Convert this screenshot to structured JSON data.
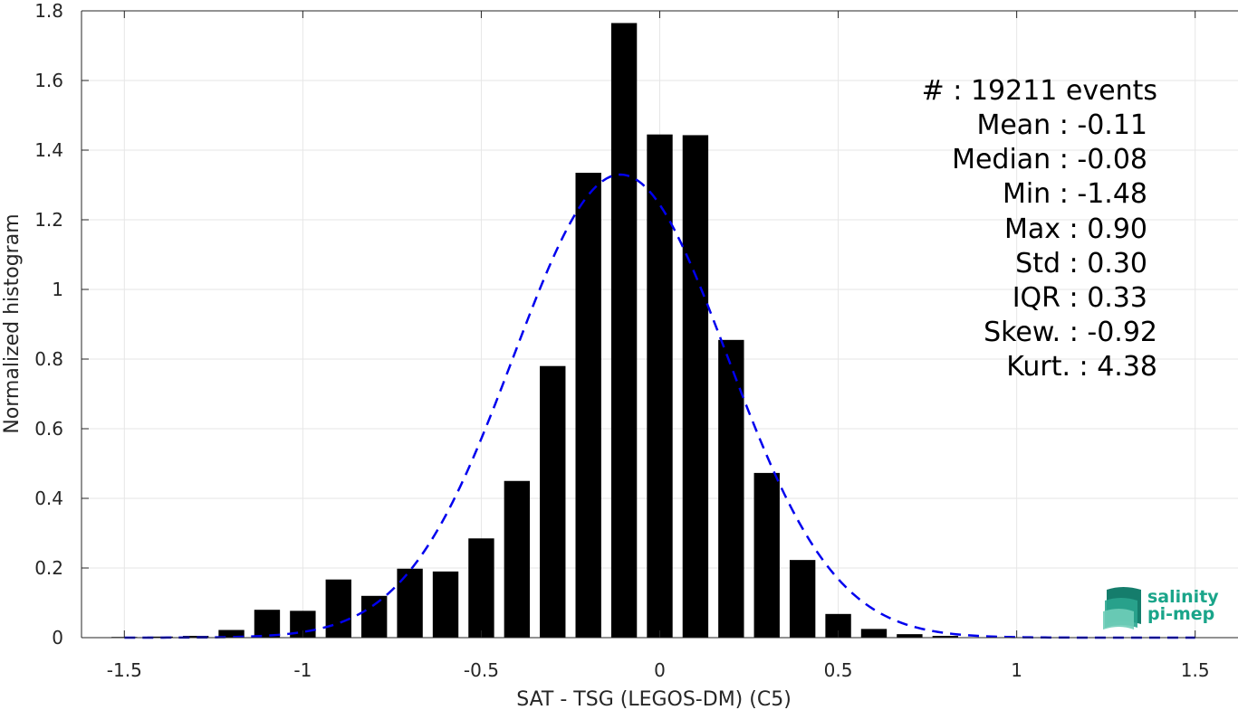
{
  "chart_data": {
    "type": "bar",
    "xlabel": "SAT - TSG (LEGOS-DM) (C5)",
    "ylabel": "Normalized histogram",
    "xlim": [
      -1.62,
      1.62
    ],
    "ylim": [
      0,
      1.8
    ],
    "xticks": [
      -1.5,
      -1,
      -0.5,
      0,
      0.5,
      1,
      1.5
    ],
    "xtick_labels": [
      "-1.5",
      "-1",
      "-0.5",
      "0",
      "0.5",
      "1",
      "1.5"
    ],
    "yticks": [
      0,
      0.2,
      0.4,
      0.6,
      0.8,
      1,
      1.2,
      1.4,
      1.6,
      1.8
    ],
    "ytick_labels": [
      "0",
      "0.2",
      "0.4",
      "0.6",
      "0.8",
      "1",
      "1.2",
      "1.4",
      "1.6",
      "1.8"
    ],
    "grid": true,
    "bar_color": "#000000",
    "bar_width": 0.072,
    "bins": {
      "centers": [
        -1.5,
        -1.4,
        -1.3,
        -1.2,
        -1.1,
        -1.0,
        -0.9,
        -0.8,
        -0.7,
        -0.6,
        -0.5,
        -0.4,
        -0.3,
        -0.2,
        -0.1,
        0.0,
        0.1,
        0.2,
        0.3,
        0.4,
        0.5,
        0.6,
        0.7,
        0.8
      ],
      "values": [
        0.002,
        0.003,
        0.005,
        0.022,
        0.08,
        0.077,
        0.167,
        0.12,
        0.198,
        0.19,
        0.285,
        0.45,
        0.78,
        1.335,
        1.765,
        1.445,
        1.443,
        0.855,
        0.473,
        0.223,
        0.068,
        0.025,
        0.01,
        0.005
      ]
    },
    "normal_fit": {
      "color": "#0000ee",
      "style": "dashed",
      "mean": -0.11,
      "std": 0.3,
      "x_range": [
        -1.5,
        1.5
      ]
    }
  },
  "stats": [
    {
      "label": "#  : 19211 events"
    },
    {
      "label": "Mean : -0.11"
    },
    {
      "label": "Median : -0.08"
    },
    {
      "label": "Min : -1.48"
    },
    {
      "label": "Max : 0.90"
    },
    {
      "label": "Std : 0.30"
    },
    {
      "label": "IQR : 0.33"
    },
    {
      "label": "Skew. : -0.92"
    },
    {
      "label": "Kurt. : 4.38"
    }
  ],
  "logo": {
    "line1": "salinity",
    "line2": "pi-mep"
  }
}
